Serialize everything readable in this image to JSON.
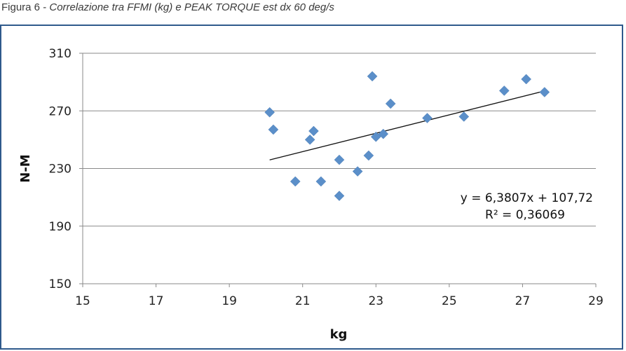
{
  "caption": {
    "prefix": "Figura 6 - ",
    "title": "Correlazione tra FFMI (kg) e PEAK TORQUE est dx 60 deg/s"
  },
  "chart_data": {
    "type": "scatter",
    "xlabel": "kg",
    "ylabel": "N-M",
    "xlim": [
      15,
      29
    ],
    "ylim": [
      150,
      310
    ],
    "xticks": [
      15,
      17,
      19,
      21,
      23,
      25,
      27,
      29
    ],
    "yticks": [
      150,
      190,
      230,
      270,
      310
    ],
    "grid": "horizontal",
    "marker_color": "#5b8fc9",
    "series": [
      {
        "x": [
          20.1,
          20.2,
          21.2,
          21.3,
          20.8,
          21.5,
          22.0,
          22.0,
          22.5,
          22.8,
          22.9,
          23.0,
          23.2,
          23.4,
          24.4,
          25.4,
          26.5,
          27.1,
          27.6
        ],
        "y": [
          269,
          257,
          250,
          256,
          221,
          221,
          236,
          211,
          228,
          239,
          294,
          252,
          254,
          275,
          265,
          266,
          284,
          292,
          283
        ]
      }
    ],
    "trendline": {
      "x": [
        20.1,
        27.6
      ],
      "equation": "y = 6,3807x + 107,72",
      "r2": "R² = 0,36069",
      "slope": 6.3807,
      "intercept": 107.72
    }
  }
}
